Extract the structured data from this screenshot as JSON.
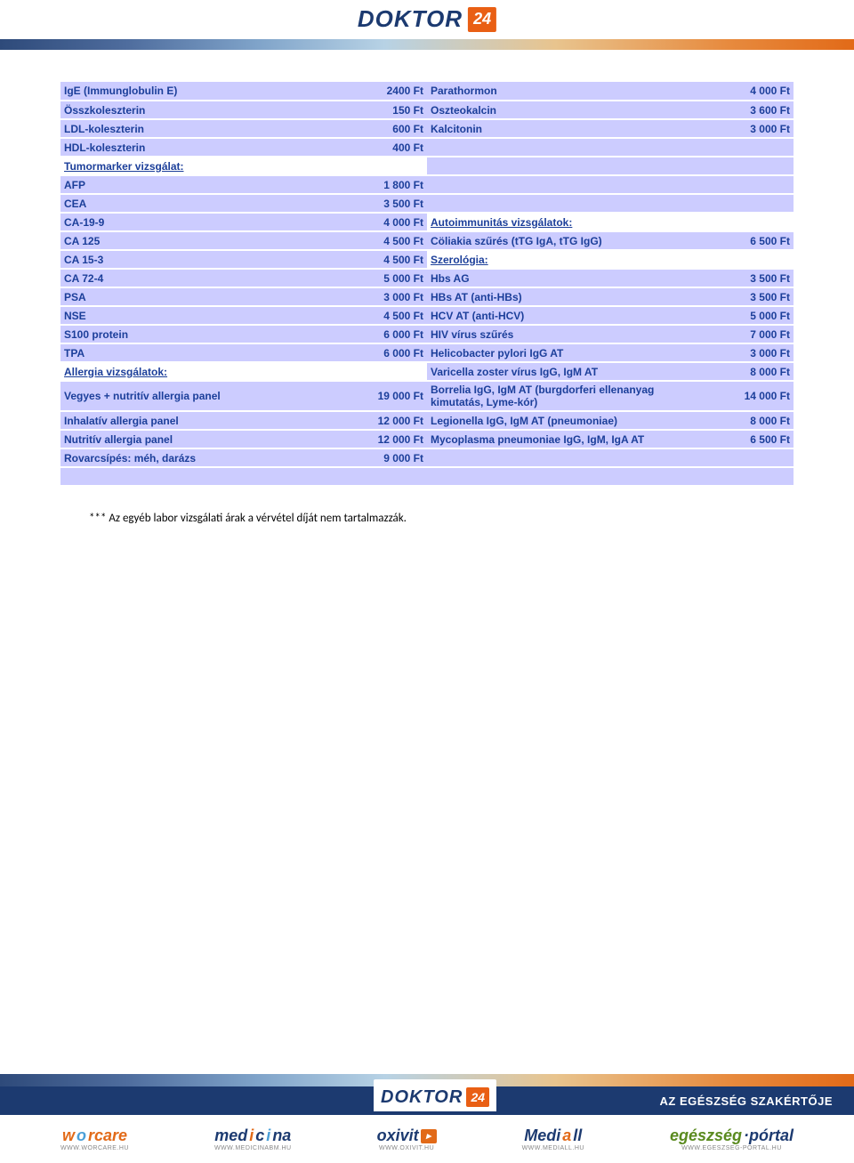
{
  "header": {
    "logo_text": "DOKTOR",
    "logo_badge": "24"
  },
  "colors": {
    "text": "#1c3f9a",
    "shade": "#ccccff",
    "orange": "#e26a18",
    "navy": "#1c3a70"
  },
  "table": {
    "rows": [
      {
        "l": "IgE (Immunglobulin E)",
        "lp": "2400 Ft",
        "r": "Parathormon",
        "rp": "4 000 Ft",
        "ls": true,
        "rs": true
      },
      {
        "l": "Összkoleszterin",
        "lp": "150 Ft",
        "r": "Oszteokalcin",
        "rp": "3 600 Ft",
        "ls": true,
        "rs": true
      },
      {
        "l": "LDL-koleszterin",
        "lp": "600 Ft",
        "r": "Kalcitonin",
        "rp": "3 000 Ft",
        "ls": true,
        "rs": true
      },
      {
        "l": "HDL-koleszterin",
        "lp": "400 Ft",
        "r": "",
        "rp": "",
        "ls": true,
        "rs": true
      },
      {
        "l": "Tumormarker vizsgálat:",
        "lp": "",
        "r": "",
        "rp": "",
        "ls": false,
        "rs": true,
        "lsection": true
      },
      {
        "l": "AFP",
        "lp": "1 800 Ft",
        "r": "",
        "rp": "",
        "ls": true,
        "rs": true
      },
      {
        "l": "CEA",
        "lp": "3 500 Ft",
        "r": "",
        "rp": "",
        "ls": true,
        "rs": true
      },
      {
        "l": "CA-19-9",
        "lp": "4 000 Ft",
        "r": "Autoimmunitás vizsgálatok:",
        "rp": "",
        "ls": true,
        "rs": false,
        "rsection": true
      },
      {
        "l": "CA 125",
        "lp": "4 500 Ft",
        "r": "Cöliakia szűrés (tTG IgA, tTG IgG)",
        "rp": "6 500 Ft",
        "ls": true,
        "rs": true
      },
      {
        "l": "CA 15-3",
        "lp": "4 500 Ft",
        "r": "Szerológia:",
        "rp": "",
        "ls": true,
        "rs": false,
        "rsection": true
      },
      {
        "l": "CA 72-4",
        "lp": "5 000 Ft",
        "r": "Hbs AG",
        "rp": "3 500 Ft",
        "ls": true,
        "rs": true
      },
      {
        "l": "PSA",
        "lp": "3 000 Ft",
        "r": "HBs AT (anti-HBs)",
        "rp": "3 500 Ft",
        "ls": true,
        "rs": true
      },
      {
        "l": "NSE",
        "lp": "4 500 Ft",
        "r": "HCV AT (anti-HCV)",
        "rp": "5 000 Ft",
        "ls": true,
        "rs": true
      },
      {
        "l": "S100 protein",
        "lp": "6 000 Ft",
        "r": "HIV vírus szűrés",
        "rp": "7 000 Ft",
        "ls": true,
        "rs": true
      },
      {
        "l": "TPA",
        "lp": "6 000 Ft",
        "r": "Helicobacter pylori IgG AT",
        "rp": "3 000 Ft",
        "ls": true,
        "rs": true
      },
      {
        "l": "Allergia vizsgálatok:",
        "lp": "",
        "r": "Varicella zoster vírus IgG, IgM AT",
        "rp": "8 000 Ft",
        "ls": false,
        "rs": true,
        "lsection": true
      },
      {
        "l": "Vegyes + nutritív allergia panel",
        "lp": "19 000 Ft",
        "r": "Borrelia IgG, IgM AT (burgdorferi ellenanyag kimutatás, Lyme-kór)",
        "rp": "14 000 Ft",
        "ls": true,
        "rs": true,
        "tall": true
      },
      {
        "l": "Inhalatív allergia panel",
        "lp": "12 000 Ft",
        "r": "Legionella IgG, IgM AT (pneumoniae)",
        "rp": "8 000 Ft",
        "ls": true,
        "rs": true,
        "tall": true
      },
      {
        "l": "Nutritív allergia panel",
        "lp": "12 000 Ft",
        "r": "Mycoplasma pneumoniae IgG, IgM, IgA AT",
        "rp": "6 500 Ft",
        "ls": true,
        "rs": true,
        "tall": true
      },
      {
        "l": "Rovarcsípés: méh, darázs",
        "lp": "9 000 Ft",
        "r": "",
        "rp": "",
        "ls": true,
        "rs": true
      },
      {
        "l": "",
        "lp": "",
        "r": "",
        "rp": "",
        "ls": true,
        "rs": true
      }
    ]
  },
  "footnote": "*** Az egyéb labor vizsgálati árak a vérvétel díját nem tartalmazzák.",
  "footer": {
    "tagline": "AZ EGÉSZSÉG SZAKÉRTŐJE",
    "brands": [
      {
        "name": "worcare",
        "url": "WWW.WORCARE.HU",
        "style": "worcare"
      },
      {
        "name": "medicina",
        "url": "WWW.MEDICINABM.HU",
        "style": "medicina"
      },
      {
        "name": "oxivit",
        "url": "WWW.OXIVIT.HU",
        "style": "oxivit"
      },
      {
        "name": "Mediall",
        "url": "WWW.MEDIALL.HU",
        "style": "mediall"
      },
      {
        "name": "egészség·pórtal",
        "url": "WWW.EGESZSEG-PORTAL.HU",
        "style": "egeszseg"
      }
    ]
  }
}
